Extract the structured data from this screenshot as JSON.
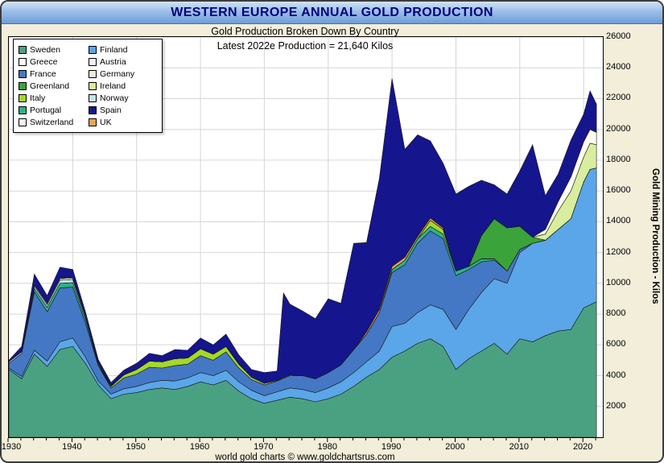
{
  "window": {
    "title": "WESTERN EUROPE ANNUAL GOLD PRODUCTION",
    "footer": "world gold charts © www.goldchartsrus.com"
  },
  "legend": {
    "items": [
      {
        "label": "Sweden",
        "color": "#4aa182"
      },
      {
        "label": "Greece",
        "color": "#fffdf0"
      },
      {
        "label": "France",
        "color": "#4478c4"
      },
      {
        "label": "Greenland",
        "color": "#3aa33a"
      },
      {
        "label": "Italy",
        "color": "#a4d82a"
      },
      {
        "label": "Portugal",
        "color": "#2db287"
      },
      {
        "label": "Switzerland",
        "color": "#fdf2ee"
      },
      {
        "label": "Finland",
        "color": "#5aa6e8"
      },
      {
        "label": "Austria",
        "color": "#edf5fb"
      },
      {
        "label": "Germany",
        "color": "#e4f2da"
      },
      {
        "label": "Ireland",
        "color": "#d8ee9e"
      },
      {
        "label": "Norway",
        "color": "#c2e6ea"
      },
      {
        "label": "Spain",
        "color": "#15158d"
      },
      {
        "label": "UK",
        "color": "#f2a44e"
      }
    ]
  },
  "chart_data": {
    "type": "area",
    "stacked": true,
    "title": "Gold Production Broken Down By Country",
    "annotation": "Latest 2022e Production = 21,640 Kilos",
    "ylabel": "Gold Mining Production - Kilos",
    "ylim": [
      0,
      26000
    ],
    "ytick_interval": 2000,
    "xlim": [
      1930,
      2023
    ],
    "xticks": [
      1930,
      1940,
      1950,
      1960,
      1970,
      1980,
      1990,
      2000,
      2010,
      2020
    ],
    "grid": true,
    "legend_position": "top-left",
    "x": [
      1930,
      1932,
      1934,
      1936,
      1938,
      1940,
      1942,
      1944,
      1946,
      1948,
      1950,
      1952,
      1954,
      1956,
      1958,
      1960,
      1962,
      1964,
      1966,
      1968,
      1970,
      1972,
      1973,
      1974,
      1976,
      1978,
      1980,
      1982,
      1984,
      1986,
      1988,
      1990,
      1992,
      1994,
      1996,
      1998,
      2000,
      2002,
      2004,
      2006,
      2008,
      2010,
      2012,
      2014,
      2016,
      2018,
      2020,
      2021,
      2022
    ],
    "series": [
      {
        "name": "Sweden",
        "color": "#4aa182",
        "values": [
          4400,
          3800,
          5400,
          4600,
          5700,
          5900,
          4800,
          3400,
          2500,
          2800,
          2900,
          3100,
          3200,
          3100,
          3300,
          3600,
          3400,
          3700,
          3000,
          2500,
          2200,
          2400,
          2500,
          2600,
          2500,
          2300,
          2500,
          2800,
          3300,
          3900,
          4400,
          5200,
          5600,
          6100,
          6400,
          5900,
          4400,
          5100,
          5600,
          6100,
          5400,
          6400,
          6200,
          6600,
          6900,
          7000,
          8400,
          8600,
          8800
        ]
      },
      {
        "name": "Finland",
        "color": "#5aa6e8",
        "values": [
          100,
          150,
          250,
          350,
          500,
          550,
          400,
          250,
          300,
          350,
          400,
          450,
          500,
          550,
          550,
          600,
          600,
          650,
          600,
          550,
          500,
          550,
          575,
          600,
          600,
          600,
          700,
          800,
          900,
          1000,
          1200,
          2000,
          1800,
          2000,
          2200,
          2400,
          2600,
          3200,
          3800,
          4200,
          4600,
          5600,
          6400,
          6200,
          6600,
          7200,
          8200,
          8800,
          8700
        ]
      },
      {
        "name": "France",
        "color": "#4478c4",
        "values": [
          300,
          1500,
          3800,
          3200,
          3500,
          3300,
          2200,
          1000,
          400,
          700,
          800,
          1000,
          800,
          1000,
          900,
          1100,
          1000,
          1200,
          900,
          700,
          700,
          700,
          750,
          800,
          900,
          900,
          1000,
          1100,
          1500,
          1800,
          2500,
          3500,
          3800,
          4500,
          4800,
          4600,
          3500,
          2600,
          2000,
          1200,
          800,
          200,
          0,
          0,
          0,
          0,
          0,
          0,
          0
        ]
      },
      {
        "name": "Portugal",
        "color": "#2db287",
        "values": [
          0,
          0,
          200,
          300,
          300,
          300,
          250,
          100,
          0,
          0,
          0,
          0,
          0,
          0,
          0,
          0,
          0,
          0,
          0,
          0,
          0,
          0,
          0,
          0,
          0,
          0,
          0,
          0,
          0,
          0,
          0,
          200,
          300,
          300,
          300,
          300,
          300,
          200,
          200,
          100,
          0,
          0,
          0,
          0,
          0,
          0,
          0,
          0,
          0
        ]
      },
      {
        "name": "Italy",
        "color": "#a4d82a",
        "values": [
          0,
          0,
          0,
          0,
          0,
          0,
          0,
          0,
          100,
          200,
          300,
          400,
          400,
          450,
          400,
          450,
          400,
          350,
          250,
          150,
          100,
          50,
          50,
          50,
          0,
          0,
          0,
          0,
          0,
          0,
          0,
          0,
          0,
          0,
          400,
          300,
          0,
          0,
          0,
          0,
          0,
          0,
          0,
          0,
          0,
          0,
          0,
          0,
          0
        ]
      },
      {
        "name": "Norway",
        "color": "#c2e6ea",
        "values": [
          100,
          100,
          150,
          150,
          200,
          200,
          150,
          100,
          50,
          0,
          0,
          0,
          0,
          0,
          0,
          0,
          0,
          0,
          0,
          0,
          0,
          0,
          0,
          0,
          0,
          0,
          0,
          0,
          0,
          0,
          0,
          0,
          0,
          0,
          0,
          0,
          0,
          0,
          0,
          0,
          0,
          0,
          0,
          0,
          0,
          0,
          0,
          0,
          0
        ]
      },
      {
        "name": "Germany",
        "color": "#e4f2da",
        "values": [
          0,
          50,
          100,
          100,
          100,
          100,
          50,
          0,
          0,
          0,
          0,
          0,
          0,
          0,
          0,
          0,
          0,
          0,
          0,
          0,
          0,
          0,
          0,
          0,
          0,
          0,
          0,
          0,
          0,
          0,
          0,
          0,
          0,
          0,
          0,
          0,
          0,
          0,
          0,
          0,
          0,
          0,
          0,
          0,
          0,
          0,
          0,
          0,
          0
        ]
      },
      {
        "name": "Austria",
        "color": "#edf5fb",
        "values": [
          0,
          0,
          0,
          0,
          50,
          50,
          0,
          0,
          0,
          0,
          0,
          0,
          0,
          0,
          0,
          0,
          0,
          0,
          0,
          0,
          0,
          0,
          0,
          0,
          0,
          0,
          0,
          0,
          0,
          0,
          0,
          0,
          0,
          0,
          0,
          0,
          0,
          0,
          0,
          0,
          0,
          0,
          0,
          0,
          0,
          0,
          0,
          0,
          0
        ]
      },
      {
        "name": "Switzerland",
        "color": "#fdf2ee",
        "values": [
          0,
          0,
          0,
          0,
          0,
          0,
          0,
          0,
          0,
          0,
          0,
          0,
          0,
          0,
          0,
          0,
          0,
          0,
          0,
          0,
          0,
          0,
          0,
          0,
          0,
          0,
          0,
          0,
          0,
          0,
          0,
          0,
          0,
          0,
          0,
          0,
          0,
          0,
          0,
          0,
          0,
          0,
          0,
          0,
          0,
          0,
          0,
          0,
          0
        ]
      },
      {
        "name": "UK",
        "color": "#f2a44e",
        "values": [
          0,
          0,
          0,
          0,
          0,
          0,
          0,
          0,
          0,
          0,
          0,
          0,
          0,
          0,
          0,
          0,
          0,
          0,
          0,
          0,
          0,
          0,
          0,
          0,
          0,
          0,
          0,
          0,
          0,
          150,
          200,
          200,
          200,
          150,
          150,
          100,
          0,
          0,
          0,
          0,
          0,
          0,
          0,
          0,
          0,
          0,
          0,
          0,
          0
        ]
      },
      {
        "name": "Greenland",
        "color": "#3aa33a",
        "values": [
          0,
          0,
          0,
          0,
          0,
          0,
          0,
          0,
          0,
          0,
          0,
          0,
          0,
          0,
          0,
          0,
          0,
          0,
          0,
          0,
          0,
          0,
          0,
          0,
          0,
          0,
          0,
          0,
          0,
          0,
          0,
          0,
          0,
          0,
          0,
          0,
          0,
          0,
          1500,
          2600,
          2800,
          1500,
          400,
          0,
          0,
          0,
          0,
          0,
          0
        ]
      },
      {
        "name": "Ireland",
        "color": "#d8ee9e",
        "values": [
          0,
          0,
          0,
          0,
          0,
          0,
          0,
          0,
          0,
          0,
          0,
          0,
          0,
          0,
          0,
          0,
          0,
          0,
          0,
          0,
          0,
          0,
          0,
          0,
          0,
          0,
          0,
          0,
          0,
          0,
          0,
          0,
          0,
          0,
          0,
          0,
          0,
          0,
          0,
          0,
          0,
          0,
          0,
          400,
          1200,
          1800,
          1600,
          1700,
          1500
        ]
      },
      {
        "name": "Greece",
        "color": "#fffdf0",
        "values": [
          0,
          0,
          0,
          0,
          0,
          0,
          0,
          0,
          0,
          0,
          0,
          0,
          0,
          0,
          0,
          0,
          0,
          0,
          0,
          0,
          0,
          0,
          0,
          0,
          0,
          0,
          0,
          0,
          0,
          0,
          0,
          0,
          0,
          0,
          0,
          0,
          0,
          0,
          0,
          0,
          0,
          0,
          0,
          300,
          600,
          900,
          1000,
          900,
          800
        ]
      },
      {
        "name": "Spain",
        "color": "#15158d",
        "values": [
          100,
          300,
          700,
          500,
          700,
          500,
          300,
          200,
          200,
          300,
          400,
          500,
          400,
          600,
          500,
          700,
          600,
          800,
          600,
          500,
          700,
          600,
          5500,
          4600,
          4200,
          3900,
          4800,
          4000,
          6900,
          5800,
          8500,
          12200,
          7000,
          6600,
          5000,
          4200,
          5000,
          5200,
          3600,
          2200,
          2200,
          3600,
          6000,
          2200,
          1800,
          2400,
          1800,
          2500,
          1840
        ]
      }
    ]
  }
}
